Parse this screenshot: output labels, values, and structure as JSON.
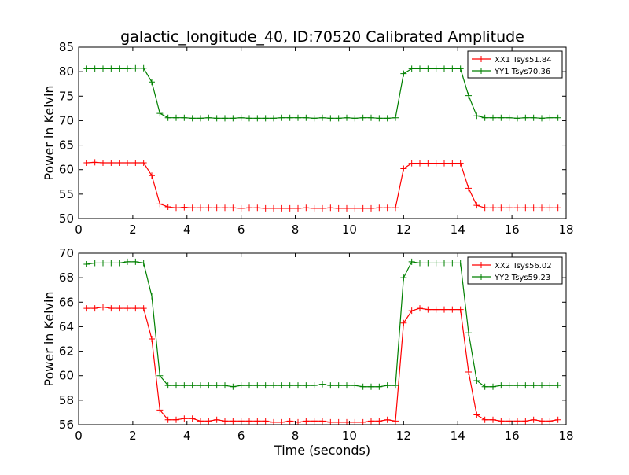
{
  "title": "galactic_longitude_40, ID:70520 Calibrated Amplitude",
  "xlabel": "Time (seconds)",
  "chart_data": [
    {
      "type": "line",
      "ylabel": "Power in Kelvin",
      "xlim": [
        0,
        18
      ],
      "ylim": [
        50,
        85
      ],
      "xticks": [
        0,
        2,
        4,
        6,
        8,
        10,
        12,
        14,
        16,
        18
      ],
      "yticks": [
        50,
        55,
        60,
        65,
        70,
        75,
        80,
        85
      ],
      "legend_position": "top-right",
      "grid": false,
      "x": [
        0.3,
        0.6,
        0.9,
        1.2,
        1.5,
        1.8,
        2.1,
        2.4,
        2.7,
        3.0,
        3.3,
        3.6,
        3.9,
        4.2,
        4.5,
        4.8,
        5.1,
        5.4,
        5.7,
        6.0,
        6.3,
        6.6,
        6.9,
        7.2,
        7.5,
        7.8,
        8.1,
        8.4,
        8.7,
        9.0,
        9.3,
        9.6,
        9.9,
        10.2,
        10.5,
        10.8,
        11.1,
        11.4,
        11.7,
        12.0,
        12.3,
        12.6,
        12.9,
        13.2,
        13.5,
        13.8,
        14.1,
        14.4,
        14.7,
        15.0,
        15.3,
        15.6,
        15.9,
        16.2,
        16.5,
        16.8,
        17.1,
        17.4,
        17.7
      ],
      "series": [
        {
          "name": "XX1 Tsys51.84",
          "color": "#ff0000",
          "values": [
            61.4,
            61.5,
            61.4,
            61.4,
            61.4,
            61.4,
            61.4,
            61.4,
            58.8,
            53.0,
            52.4,
            52.2,
            52.3,
            52.2,
            52.2,
            52.2,
            52.2,
            52.2,
            52.2,
            52.1,
            52.2,
            52.2,
            52.1,
            52.1,
            52.1,
            52.1,
            52.1,
            52.2,
            52.1,
            52.1,
            52.2,
            52.1,
            52.1,
            52.1,
            52.1,
            52.1,
            52.2,
            52.2,
            52.2,
            60.2,
            61.3,
            61.3,
            61.3,
            61.3,
            61.3,
            61.3,
            61.3,
            56.2,
            52.7,
            52.2,
            52.2,
            52.2,
            52.2,
            52.2,
            52.2,
            52.2,
            52.2,
            52.2,
            52.2
          ]
        },
        {
          "name": "YY1 Tsys70.36",
          "color": "#008000",
          "values": [
            80.6,
            80.6,
            80.6,
            80.6,
            80.6,
            80.6,
            80.7,
            80.7,
            77.9,
            71.5,
            70.6,
            70.6,
            70.6,
            70.5,
            70.5,
            70.6,
            70.5,
            70.5,
            70.5,
            70.6,
            70.5,
            70.5,
            70.5,
            70.5,
            70.6,
            70.6,
            70.6,
            70.6,
            70.5,
            70.6,
            70.5,
            70.5,
            70.6,
            70.5,
            70.6,
            70.6,
            70.5,
            70.5,
            70.6,
            79.6,
            80.6,
            80.6,
            80.6,
            80.6,
            80.6,
            80.6,
            80.6,
            75.1,
            71.0,
            70.6,
            70.6,
            70.6,
            70.6,
            70.5,
            70.6,
            70.6,
            70.5,
            70.6,
            70.6
          ]
        }
      ]
    },
    {
      "type": "line",
      "ylabel": "Power in Kelvin",
      "xlim": [
        0,
        18
      ],
      "ylim": [
        56,
        70
      ],
      "xticks": [
        0,
        2,
        4,
        6,
        8,
        10,
        12,
        14,
        16,
        18
      ],
      "yticks": [
        56,
        58,
        60,
        62,
        64,
        66,
        68,
        70
      ],
      "legend_position": "top-right",
      "grid": false,
      "x": [
        0.3,
        0.6,
        0.9,
        1.2,
        1.5,
        1.8,
        2.1,
        2.4,
        2.7,
        3.0,
        3.3,
        3.6,
        3.9,
        4.2,
        4.5,
        4.8,
        5.1,
        5.4,
        5.7,
        6.0,
        6.3,
        6.6,
        6.9,
        7.2,
        7.5,
        7.8,
        8.1,
        8.4,
        8.7,
        9.0,
        9.3,
        9.6,
        9.9,
        10.2,
        10.5,
        10.8,
        11.1,
        11.4,
        11.7,
        12.0,
        12.3,
        12.6,
        12.9,
        13.2,
        13.5,
        13.8,
        14.1,
        14.4,
        14.7,
        15.0,
        15.3,
        15.6,
        15.9,
        16.2,
        16.5,
        16.8,
        17.1,
        17.4,
        17.7
      ],
      "series": [
        {
          "name": "XX2 Tsys56.02",
          "color": "#ff0000",
          "values": [
            65.5,
            65.5,
            65.6,
            65.5,
            65.5,
            65.5,
            65.5,
            65.5,
            63.0,
            57.2,
            56.4,
            56.4,
            56.5,
            56.5,
            56.3,
            56.3,
            56.4,
            56.3,
            56.3,
            56.3,
            56.3,
            56.3,
            56.3,
            56.2,
            56.2,
            56.3,
            56.2,
            56.3,
            56.3,
            56.3,
            56.2,
            56.2,
            56.2,
            56.2,
            56.2,
            56.3,
            56.3,
            56.4,
            56.3,
            64.3,
            65.3,
            65.5,
            65.4,
            65.4,
            65.4,
            65.4,
            65.4,
            60.3,
            56.8,
            56.4,
            56.4,
            56.3,
            56.3,
            56.3,
            56.3,
            56.4,
            56.3,
            56.3,
            56.4
          ]
        },
        {
          "name": "YY2 Tsys59.23",
          "color": "#008000",
          "values": [
            69.1,
            69.2,
            69.2,
            69.2,
            69.2,
            69.3,
            69.3,
            69.2,
            66.5,
            60.0,
            59.2,
            59.2,
            59.2,
            59.2,
            59.2,
            59.2,
            59.2,
            59.2,
            59.1,
            59.2,
            59.2,
            59.2,
            59.2,
            59.2,
            59.2,
            59.2,
            59.2,
            59.2,
            59.2,
            59.3,
            59.2,
            59.2,
            59.2,
            59.2,
            59.1,
            59.1,
            59.1,
            59.2,
            59.2,
            68.0,
            69.3,
            69.2,
            69.2,
            69.2,
            69.2,
            69.2,
            69.2,
            63.5,
            59.6,
            59.1,
            59.1,
            59.2,
            59.2,
            59.2,
            59.2,
            59.2,
            59.2,
            59.2,
            59.2
          ]
        }
      ]
    }
  ]
}
